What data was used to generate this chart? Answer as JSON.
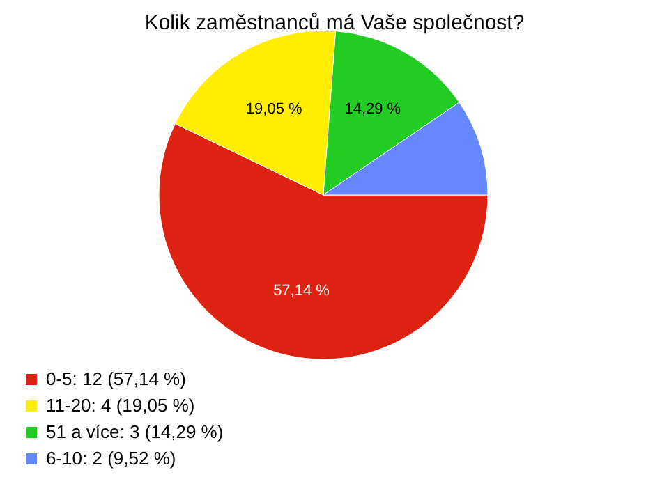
{
  "chart_data": {
    "type": "pie",
    "title": "Kolik zaměstnanců má Vaše společnost?",
    "categories": [
      "0-5: 12 (57,14 %)",
      "11-20: 4 (19,05 %)",
      "51 a více: 3 (14,29 %)",
      "6-10: 2 (9,52 %)"
    ],
    "values": [
      57.14,
      19.05,
      14.29,
      9.52
    ],
    "colors": [
      "#dd2211",
      "#ffee00",
      "#22cc22",
      "#6688ff"
    ],
    "value_labels": [
      "57,14 %",
      "19,05 %",
      "14,29 %",
      null
    ],
    "legend": "bottom left"
  }
}
